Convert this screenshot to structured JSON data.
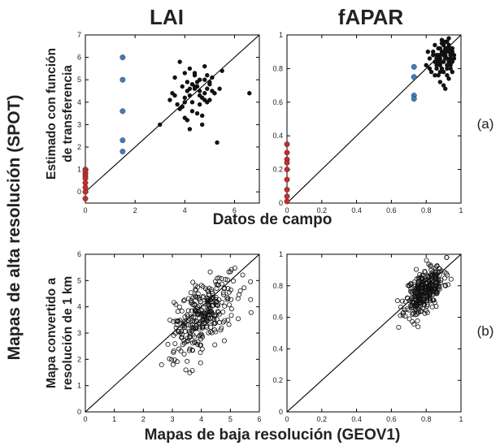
{
  "figure": {
    "col_title_lai": "LAI",
    "col_title_fapar": "fAPAR",
    "row_label_main": "Mapas de alta resolución (SPOT)",
    "ylabel_top_line1": "Estimado con función",
    "ylabel_top_line2": "de transferencia",
    "ylabel_bottom_line1": "Mapa convertido a",
    "ylabel_bottom_line2": "resolución de 1 km",
    "xlabel_top": "Datos de campo",
    "xlabel_bottom": "Mapas de baja resolución (GEOV1)",
    "panel_label_a": "(a)",
    "panel_label_b": "(b)"
  },
  "colors": {
    "black": "#111111",
    "blue": "#3f7cc4",
    "red": "#cc2a2a"
  },
  "chart_data": [
    {
      "id": "a-lai",
      "type": "scatter",
      "title": "LAI",
      "xlabel": "Datos de campo",
      "ylabel": "Estimado con función de transferencia",
      "xlim": [
        0,
        7
      ],
      "ylim": [
        -0.5,
        7
      ],
      "xticks": [
        0,
        2,
        4,
        6
      ],
      "yticks": [
        0,
        1,
        2,
        3,
        4,
        5,
        6,
        7
      ],
      "identity_line": true,
      "series": [
        {
          "name": "black",
          "color": "#111111",
          "filled": true,
          "x": [
            3.8,
            4.0,
            4.2,
            4.4,
            4.6,
            4.8,
            5.0,
            4.5,
            4.1,
            3.6,
            3.4,
            4.9,
            5.2,
            4.3,
            4.7,
            4.0,
            3.9,
            5.1,
            4.6,
            4.2,
            3.5,
            5.5,
            4.8,
            4.4,
            4.0,
            3.7,
            5.0,
            4.5,
            4.9,
            4.3,
            4.1,
            6.6,
            5.4,
            4.7,
            4.2,
            3.0,
            5.3,
            4.6,
            4.4,
            4.8,
            3.9,
            4.5,
            4.0,
            5.1,
            4.3,
            4.6,
            3.8,
            4.9,
            4.2,
            4.7,
            5.0,
            4.4,
            3.6,
            4.1,
            4.8
          ],
          "y": [
            5.8,
            5.3,
            5.5,
            5.2,
            5.0,
            5.6,
            4.9,
            4.7,
            4.5,
            4.3,
            4.1,
            4.6,
            4.4,
            4.8,
            4.2,
            4.0,
            3.8,
            5.1,
            4.5,
            4.3,
            4.4,
            5.4,
            5.0,
            4.6,
            4.2,
            3.9,
            4.8,
            3.5,
            4.0,
            3.6,
            3.2,
            4.4,
            4.6,
            3.0,
            2.8,
            3.0,
            2.2,
            3.9,
            5.3,
            4.1,
            4.7,
            4.9,
            3.3,
            4.5,
            4.0,
            4.3,
            3.7,
            5.2,
            4.6,
            3.4,
            4.1,
            4.7,
            5.1,
            4.9,
            4.4
          ]
        },
        {
          "name": "blue",
          "color": "#3f7cc4",
          "filled": true,
          "x": [
            1.5,
            1.5,
            1.5,
            1.5,
            1.5
          ],
          "y": [
            6.0,
            5.0,
            3.6,
            2.3,
            1.8
          ]
        },
        {
          "name": "red",
          "color": "#cc2a2a",
          "filled": true,
          "x": [
            0,
            0,
            0,
            0,
            0,
            0,
            0,
            0,
            0
          ],
          "y": [
            1.0,
            0.9,
            0.8,
            0.7,
            0.6,
            0.4,
            0.2,
            0.0,
            -0.3
          ]
        }
      ]
    },
    {
      "id": "a-fapar",
      "type": "scatter",
      "title": "fAPAR",
      "xlabel": "Datos de campo",
      "ylabel": "Estimado con función de transferencia",
      "xlim": [
        0,
        1
      ],
      "ylim": [
        0,
        1
      ],
      "xticks": [
        0,
        0.2,
        0.4,
        0.6,
        0.8,
        1
      ],
      "yticks": [
        0,
        0.2,
        0.4,
        0.6,
        0.8,
        1
      ],
      "identity_line": true,
      "series": [
        {
          "name": "black",
          "color": "#111111",
          "filled": true,
          "x": [
            0.8,
            0.82,
            0.84,
            0.85,
            0.86,
            0.87,
            0.88,
            0.88,
            0.89,
            0.9,
            0.9,
            0.91,
            0.91,
            0.92,
            0.92,
            0.93,
            0.93,
            0.94,
            0.94,
            0.95,
            0.95,
            0.96,
            0.83,
            0.86,
            0.87,
            0.89,
            0.9,
            0.92,
            0.94,
            0.88,
            0.85,
            0.91,
            0.93,
            0.95,
            0.81,
            0.84,
            0.87,
            0.89,
            0.91,
            0.93,
            0.86,
            0.88,
            0.9,
            0.92,
            0.94,
            0.87,
            0.9,
            0.92,
            0.89,
            0.91,
            0.94,
            0.85,
            0.88,
            0.93,
            0.96,
            0.82,
            0.9,
            0.92,
            0.88,
            0.91,
            0.95,
            0.86,
            0.89
          ],
          "y": [
            0.82,
            0.86,
            0.9,
            0.84,
            0.8,
            0.88,
            0.92,
            0.86,
            0.95,
            0.9,
            0.84,
            0.92,
            0.88,
            0.96,
            0.86,
            0.9,
            0.94,
            0.88,
            0.92,
            0.84,
            0.9,
            0.86,
            0.78,
            0.82,
            0.76,
            0.8,
            0.78,
            0.82,
            0.8,
            0.88,
            0.94,
            0.96,
            0.98,
            0.92,
            0.9,
            0.88,
            0.84,
            0.9,
            0.86,
            0.84,
            0.86,
            0.82,
            0.88,
            0.8,
            0.86,
            0.92,
            0.94,
            0.92,
            0.97,
            0.9,
            0.82,
            0.76,
            0.78,
            0.74,
            0.88,
            0.8,
            0.7,
            0.76,
            0.72,
            0.68,
            0.78,
            0.88,
            0.84
          ]
        },
        {
          "name": "blue",
          "color": "#3f7cc4",
          "filled": true,
          "x": [
            0.73,
            0.73,
            0.73,
            0.73
          ],
          "y": [
            0.81,
            0.75,
            0.64,
            0.62
          ]
        },
        {
          "name": "red",
          "color": "#cc2a2a",
          "filled": true,
          "x": [
            0,
            0,
            0,
            0,
            0,
            0,
            0,
            0,
            0
          ],
          "y": [
            0.35,
            0.3,
            0.26,
            0.24,
            0.2,
            0.14,
            0.08,
            0.04,
            0.01
          ]
        }
      ]
    },
    {
      "id": "b-lai",
      "type": "scatter",
      "title": "LAI",
      "xlabel": "Mapas de baja resolución (GEOV1)",
      "ylabel": "Mapa convertido a resolución de 1 km",
      "xlim": [
        0,
        6
      ],
      "ylim": [
        0,
        6
      ],
      "xticks": [
        0,
        1,
        2,
        3,
        4,
        5,
        6
      ],
      "yticks": [
        0,
        1,
        2,
        3,
        4,
        5,
        6
      ],
      "identity_line": true,
      "scatter_cloud": {
        "n": 300,
        "mean_x": 4.0,
        "mean_y": 3.6,
        "sd_x": 0.55,
        "sd_y": 0.75,
        "corr": 0.5,
        "seed": 7
      },
      "series": [
        {
          "name": "samples",
          "color": "#111111",
          "filled": false
        }
      ]
    },
    {
      "id": "b-fapar",
      "type": "scatter",
      "title": "fAPAR",
      "xlabel": "Mapas de baja resolución (GEOV1)",
      "ylabel": "Mapa convertido a resolución de 1 km",
      "xlim": [
        0,
        1
      ],
      "ylim": [
        0,
        1
      ],
      "xticks": [
        0,
        0.2,
        0.4,
        0.6,
        0.8,
        1
      ],
      "yticks": [
        0,
        0.2,
        0.4,
        0.6,
        0.8,
        1
      ],
      "identity_line": true,
      "scatter_cloud": {
        "n": 320,
        "mean_x": 0.79,
        "mean_y": 0.77,
        "sd_x": 0.055,
        "sd_y": 0.08,
        "corr": 0.55,
        "seed": 11
      },
      "series": [
        {
          "name": "samples",
          "color": "#111111",
          "filled": false
        }
      ]
    }
  ]
}
